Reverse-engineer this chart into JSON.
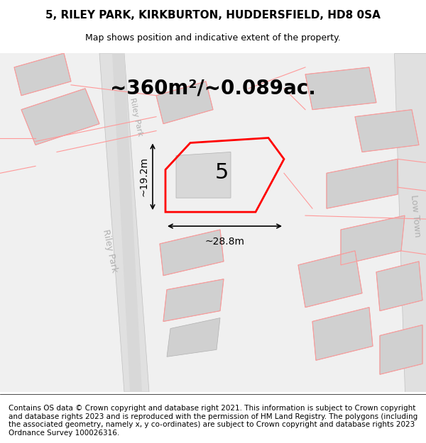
{
  "title": "5, RILEY PARK, KIRKBURTON, HUDDERSFIELD, HD8 0SA",
  "subtitle": "Map shows position and indicative extent of the property.",
  "area_text": "~360m²/~0.089ac.",
  "number_label": "5",
  "dim_width": "~28.8m",
  "dim_height": "~19.2m",
  "street_label_1": "Riley Park",
  "street_label_2": "Riley Park",
  "low_town_label": "Low Town",
  "footer": "Contains OS data © Crown copyright and database right 2021. This information is subject to Crown copyright and database rights 2023 and is reproduced with the permission of HM Land Registry. The polygons (including the associated geometry, namely x, y co-ordinates) are subject to Crown copyright and database rights 2023 Ordnance Survey 100026316.",
  "bg_color": "#f5f5f5",
  "map_bg": "#f0f0f0",
  "building_color": "#d8d8d8",
  "road_color": "#e8e8e8",
  "highlight_color": "#ff0000",
  "pink_line_color": "#ffaaaa",
  "title_fontsize": 11,
  "subtitle_fontsize": 9,
  "area_fontsize": 20,
  "number_fontsize": 22,
  "footer_fontsize": 7.5
}
